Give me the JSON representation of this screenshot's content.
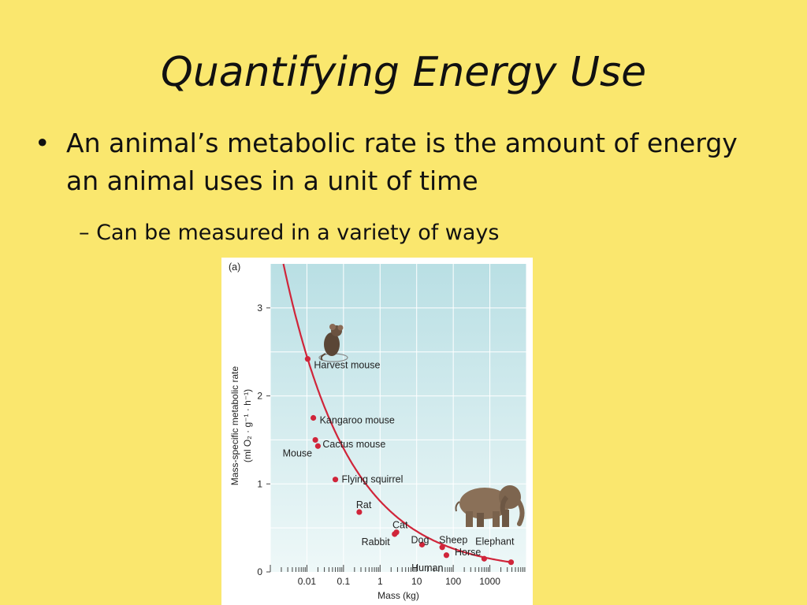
{
  "slide": {
    "title": "Quantifying Energy Use",
    "bullet": "An animal’s metabolic rate is the amount of energy an animal uses in a unit of time",
    "bullet_symbol": "•",
    "sub_bullet": "– Can be measured in a variety of ways"
  },
  "figure": {
    "panel_label": "(a)"
  },
  "colors": {
    "background": "#fae76e",
    "plot_bg_top": "#b9dfe4",
    "plot_bg_bottom": "#eef8f8",
    "curve": "#d0253a",
    "point": "#d0253a",
    "grid": "#ffffff"
  },
  "icons": [
    "mouse-illustration",
    "elephant-illustration"
  ],
  "chart_data": {
    "type": "scatter",
    "xlabel": "Mass (kg)",
    "ylabel": "Mass-specific metabolic rate (ml O2 · g−1 · h−1)",
    "ylabel_line1": "Mass-specific metabolic rate",
    "ylabel_line2": "(ml O₂ · g⁻¹ · h⁻¹)",
    "x_scale": "log",
    "xlim": [
      0.001,
      10000
    ],
    "ylim": [
      0,
      3.5
    ],
    "x_ticks": [
      {
        "value": 0.01,
        "label": "0.01"
      },
      {
        "value": 0.1,
        "label": "0.1"
      },
      {
        "value": 1,
        "label": "1"
      },
      {
        "value": 10,
        "label": "10"
      },
      {
        "value": 100,
        "label": "100"
      },
      {
        "value": 1000,
        "label": "1000"
      }
    ],
    "y_ticks": [
      {
        "value": 0,
        "label": "0"
      },
      {
        "value": 1,
        "label": "1"
      },
      {
        "value": 2,
        "label": "2"
      },
      {
        "value": 3,
        "label": "3"
      }
    ],
    "grid": true,
    "points": [
      {
        "name": "Harvest mouse",
        "x": 0.0105,
        "y": 2.42
      },
      {
        "name": "Kangaroo mouse",
        "x": 0.015,
        "y": 1.75
      },
      {
        "name": "Cactus mouse",
        "x": 0.02,
        "y": 1.43
      },
      {
        "name": "Mouse",
        "x": 0.017,
        "y": 1.5
      },
      {
        "name": "Flying squirrel",
        "x": 0.06,
        "y": 1.05
      },
      {
        "name": "Rat",
        "x": 0.27,
        "y": 0.68
      },
      {
        "name": "Cat",
        "x": 2.8,
        "y": 0.45
      },
      {
        "name": "Rabbit",
        "x": 2.5,
        "y": 0.43
      },
      {
        "name": "Dog",
        "x": 14,
        "y": 0.31
      },
      {
        "name": "Sheep",
        "x": 50,
        "y": 0.28
      },
      {
        "name": "Human",
        "x": 65,
        "y": 0.19
      },
      {
        "name": "Horse",
        "x": 700,
        "y": 0.15
      },
      {
        "name": "Elephant",
        "x": 3800,
        "y": 0.11
      }
    ]
  }
}
